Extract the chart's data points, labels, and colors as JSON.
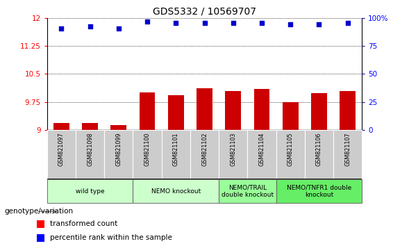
{
  "title": "GDS5332 / 10569707",
  "samples": [
    "GSM821097",
    "GSM821098",
    "GSM821099",
    "GSM821100",
    "GSM821101",
    "GSM821102",
    "GSM821103",
    "GSM821104",
    "GSM821105",
    "GSM821106",
    "GSM821107"
  ],
  "bar_values": [
    9.18,
    9.18,
    9.12,
    10.0,
    9.93,
    10.12,
    10.05,
    10.1,
    9.75,
    9.98,
    10.05
  ],
  "dot_values": [
    11.72,
    11.78,
    11.72,
    11.91,
    11.87,
    11.87,
    11.87,
    11.87,
    11.83,
    11.83,
    11.87
  ],
  "ylim_left": [
    9.0,
    12.0
  ],
  "yticks_left": [
    9.0,
    9.75,
    10.5,
    11.25,
    12.0
  ],
  "ytick_labels_left": [
    "9",
    "9.75",
    "10.5",
    "11.25",
    "12"
  ],
  "yticks_right": [
    0,
    25,
    50,
    75,
    100
  ],
  "ytick_labels_right": [
    "0",
    "25",
    "50",
    "75",
    "100%"
  ],
  "bar_color": "#cc0000",
  "dot_color": "#0000cc",
  "group_labels": [
    "wild type",
    "NEMO knockout",
    "NEMO/TRAIL\ndouble knockout",
    "NEMO/TNFR1 double\nknockout"
  ],
  "group_ranges": [
    [
      0,
      3
    ],
    [
      3,
      6
    ],
    [
      6,
      8
    ],
    [
      8,
      11
    ]
  ],
  "group_bg_colors": [
    "#ccffcc",
    "#ccffcc",
    "#99ff99",
    "#66ee66"
  ],
  "sample_bg_color": "#cccccc",
  "legend_items": [
    "transformed count",
    "percentile rank within the sample"
  ],
  "xlabel_left": "genotype/variation"
}
